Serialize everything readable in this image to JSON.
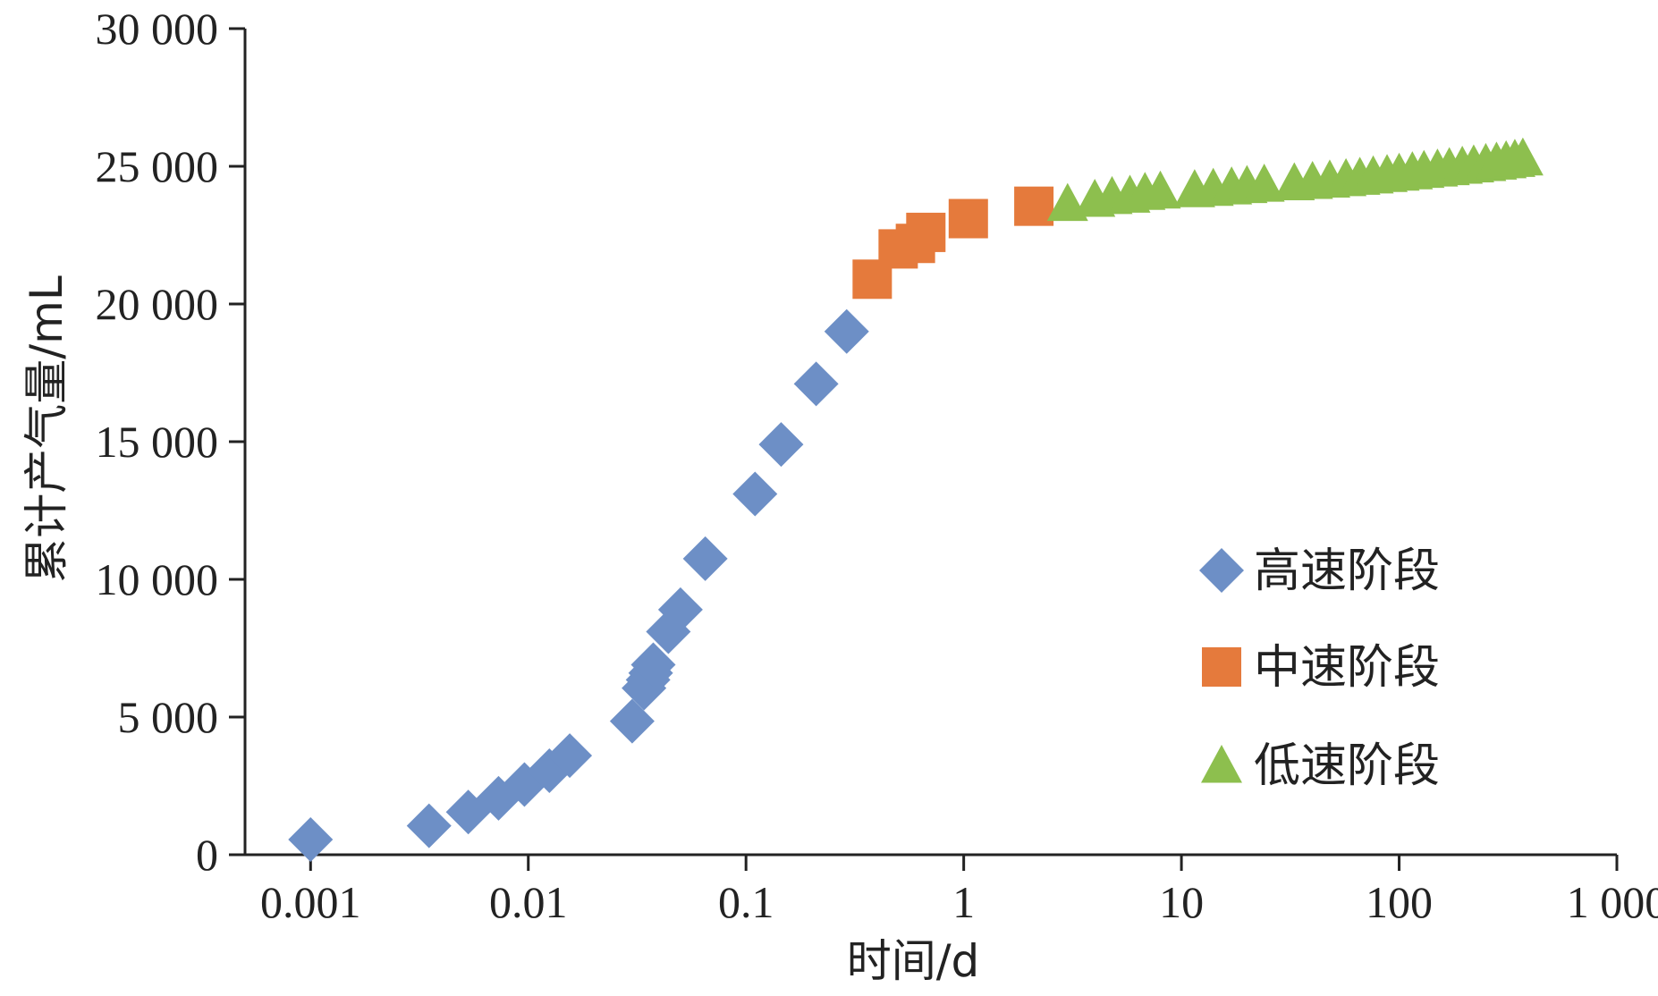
{
  "chart_data": {
    "type": "scatter",
    "xlabel": "时间/d",
    "ylabel": "累计产气量/mL",
    "x_scale": "log",
    "xlim": [
      0.0005,
      1000
    ],
    "ylim": [
      0,
      30000
    ],
    "x_ticks": [
      {
        "value": 0.001,
        "label": "0.001"
      },
      {
        "value": 0.01,
        "label": "0.01"
      },
      {
        "value": 0.1,
        "label": "0.1"
      },
      {
        "value": 1,
        "label": "1"
      },
      {
        "value": 10,
        "label": "10"
      },
      {
        "value": 100,
        "label": "100"
      },
      {
        "value": 1000,
        "label": "1 000"
      }
    ],
    "y_ticks": [
      {
        "value": 0,
        "label": "0"
      },
      {
        "value": 5000,
        "label": "5 000"
      },
      {
        "value": 10000,
        "label": "10 000"
      },
      {
        "value": 15000,
        "label": "15 000"
      },
      {
        "value": 20000,
        "label": "20 000"
      },
      {
        "value": 25000,
        "label": "25 000"
      },
      {
        "value": 30000,
        "label": "30 000"
      }
    ],
    "legend_position": "right",
    "grid": false,
    "series": [
      {
        "name": "高速阶段",
        "marker": "diamond",
        "color": "#6D8FC6",
        "points": [
          [
            0.001,
            550
          ],
          [
            0.0035,
            1050
          ],
          [
            0.0053,
            1550
          ],
          [
            0.0073,
            2050
          ],
          [
            0.0096,
            2550
          ],
          [
            0.0125,
            3050
          ],
          [
            0.0155,
            3600
          ],
          [
            0.03,
            4850
          ],
          [
            0.034,
            6050
          ],
          [
            0.0355,
            6350
          ],
          [
            0.0365,
            6600
          ],
          [
            0.0375,
            6900
          ],
          [
            0.044,
            8100
          ],
          [
            0.05,
            8900
          ],
          [
            0.065,
            10750
          ],
          [
            0.11,
            13100
          ],
          [
            0.145,
            14900
          ],
          [
            0.21,
            17100
          ],
          [
            0.29,
            19000
          ]
        ]
      },
      {
        "name": "中速阶段",
        "marker": "square",
        "color": "#E57A3C",
        "points": [
          [
            0.38,
            20900
          ],
          [
            0.5,
            22000
          ],
          [
            0.6,
            22200
          ],
          [
            0.67,
            22600
          ],
          [
            1.05,
            23100
          ],
          [
            2.1,
            23550
          ]
        ]
      },
      {
        "name": "低速阶段",
        "marker": "triangle",
        "color": "#8DBF4E",
        "points": [
          [
            3.0,
            23650
          ],
          [
            4.0,
            23800
          ],
          [
            4.8,
            23900
          ],
          [
            5.8,
            23950
          ],
          [
            6.8,
            24050
          ],
          [
            8.0,
            24100
          ],
          [
            11.5,
            24150
          ],
          [
            14.0,
            24200
          ],
          [
            17.0,
            24250
          ],
          [
            20.0,
            24300
          ],
          [
            24.0,
            24350
          ],
          [
            33,
            24400
          ],
          [
            40,
            24450
          ],
          [
            48,
            24500
          ],
          [
            57,
            24550
          ],
          [
            66,
            24600
          ],
          [
            76,
            24650
          ],
          [
            88,
            24700
          ],
          [
            100,
            24750
          ],
          [
            115,
            24800
          ],
          [
            130,
            24850
          ],
          [
            150,
            24900
          ],
          [
            170,
            24950
          ],
          [
            195,
            25000
          ],
          [
            220,
            25050
          ],
          [
            250,
            25100
          ],
          [
            280,
            25150
          ],
          [
            310,
            25200
          ],
          [
            340,
            25250
          ],
          [
            370,
            25300
          ]
        ]
      }
    ]
  }
}
